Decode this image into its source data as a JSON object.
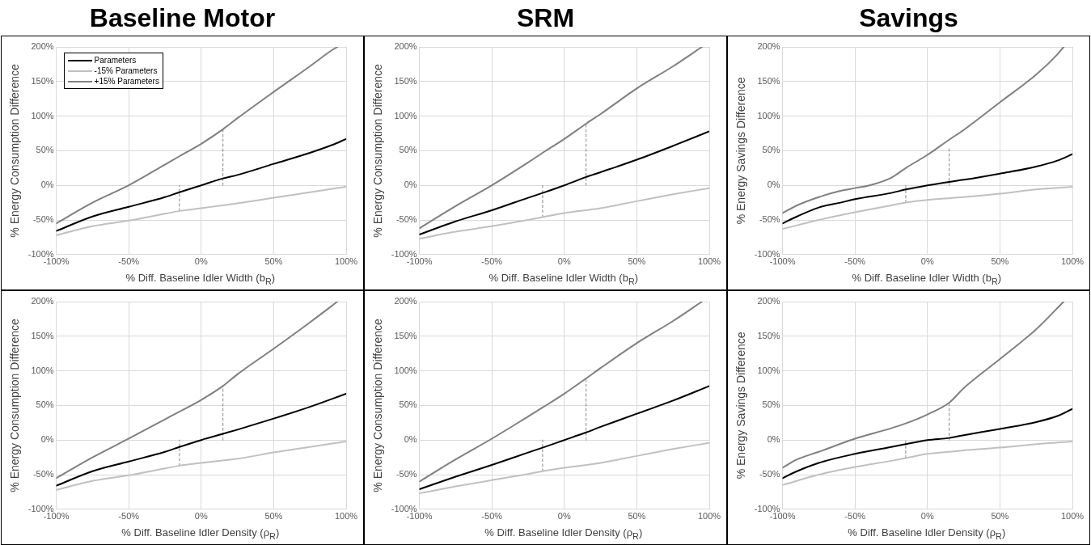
{
  "chart_data": [
    {
      "type": "line",
      "title": "Baseline Motor",
      "xlabel": "% Diff. Baseline Idler Width (b$_{R}$)",
      "ylabel": "% Energy Consumption Difference",
      "xlim": [
        -100,
        100
      ],
      "ylim": [
        -100,
        200
      ],
      "xticks": [
        {
          "value": -100,
          "label": "-100%"
        },
        {
          "value": -50,
          "label": "-50%"
        },
        {
          "value": 0,
          "label": "0%"
        },
        {
          "value": 50,
          "label": "50%"
        },
        {
          "value": 100,
          "label": "100%"
        }
      ],
      "yticks": [
        {
          "value": -100,
          "label": "-100%"
        },
        {
          "value": -50,
          "label": "-50%"
        },
        {
          "value": 0,
          "label": "0%"
        },
        {
          "value": 50,
          "label": "50%"
        },
        {
          "value": 100,
          "label": "100%"
        },
        {
          "value": 150,
          "label": "150%"
        },
        {
          "value": 200,
          "label": "200%"
        }
      ],
      "grid": true,
      "legend": "top left",
      "series": [
        {
          "name": "Parameters",
          "color": "#000000",
          "x": [
            -100,
            -75,
            -50,
            -25,
            -15,
            0,
            15,
            25,
            50,
            75,
            90,
            100
          ],
          "values": [
            -66,
            -45,
            -31,
            -17,
            -10,
            0,
            10,
            15,
            31,
            47,
            58,
            67
          ]
        },
        {
          "name": "-15% Parameters",
          "color": "#c0c0c0",
          "x": [
            -100,
            -75,
            -50,
            -25,
            -15,
            0,
            25,
            50,
            75,
            100
          ],
          "values": [
            -72,
            -59,
            -51,
            -41,
            -37,
            -33,
            -26,
            -18,
            -10,
            -2
          ]
        },
        {
          "name": "+15% Parameters",
          "color": "#808080",
          "x": [
            -100,
            -75,
            -50,
            -25,
            -15,
            0,
            15,
            25,
            50,
            75,
            90,
            94
          ],
          "values": [
            -55,
            -25,
            0,
            30,
            42,
            60,
            81,
            97,
            135,
            172,
            195,
            200
          ]
        },
        {
          "color": "#7f7f7f",
          "line_style": "dashed",
          "x": [
            -15,
            -15
          ],
          "values": [
            -37,
            0
          ]
        },
        {
          "color": "#7f7f7f",
          "line_style": "dashed",
          "x": [
            15,
            15
          ],
          "values": [
            0,
            81
          ]
        }
      ]
    },
    {
      "type": "line",
      "title": "SRM",
      "xlabel": "% Diff. Baseline Idler Width (b$_{R}$)",
      "ylabel": "% Energy Consumption Difference",
      "xlim": [
        -100,
        100
      ],
      "ylim": [
        -100,
        200
      ],
      "xticks": [
        {
          "value": -100,
          "label": "-100%"
        },
        {
          "value": -50,
          "label": "-50%"
        },
        {
          "value": 0,
          "label": "0%"
        },
        {
          "value": 50,
          "label": "50%"
        },
        {
          "value": 100,
          "label": "100%"
        }
      ],
      "yticks": [
        {
          "value": -100,
          "label": "-100%"
        },
        {
          "value": -50,
          "label": "-50%"
        },
        {
          "value": 0,
          "label": "0%"
        },
        {
          "value": 50,
          "label": "50%"
        },
        {
          "value": 100,
          "label": "100%"
        },
        {
          "value": 150,
          "label": "150%"
        },
        {
          "value": 200,
          "label": "200%"
        }
      ],
      "grid": true,
      "series": [
        {
          "color": "#000000",
          "x": [
            -100,
            -75,
            -50,
            -25,
            -15,
            0,
            15,
            25,
            50,
            75,
            100
          ],
          "values": [
            -71,
            -52,
            -36,
            -18,
            -11,
            0,
            12,
            19,
            37,
            57,
            78
          ]
        },
        {
          "color": "#c0c0c0",
          "x": [
            -100,
            -75,
            -50,
            -25,
            -15,
            0,
            25,
            50,
            75,
            100
          ],
          "values": [
            -77,
            -67,
            -59,
            -50,
            -46,
            -40,
            -33,
            -23,
            -13,
            -4
          ]
        },
        {
          "color": "#808080",
          "x": [
            -100,
            -75,
            -50,
            -25,
            -15,
            0,
            15,
            25,
            50,
            75,
            95
          ],
          "values": [
            -62,
            -30,
            0,
            33,
            47,
            67,
            89,
            103,
            140,
            172,
            200
          ]
        },
        {
          "color": "#7f7f7f",
          "line_style": "dashed",
          "x": [
            -15,
            -15
          ],
          "values": [
            -46,
            0
          ]
        },
        {
          "color": "#7f7f7f",
          "line_style": "dashed",
          "x": [
            15,
            15
          ],
          "values": [
            0,
            89
          ]
        }
      ]
    },
    {
      "type": "line",
      "title": "Savings",
      "xlabel": "% Diff. Baseline Idler Width (b$_{R}$)",
      "ylabel": "% Energy Savings Difference",
      "xlim": [
        -100,
        100
      ],
      "ylim": [
        -100,
        200
      ],
      "xticks": [
        {
          "value": -100,
          "label": "-100%"
        },
        {
          "value": -50,
          "label": "-50%"
        },
        {
          "value": 0,
          "label": "0%"
        },
        {
          "value": 50,
          "label": "50%"
        },
        {
          "value": 100,
          "label": "100%"
        }
      ],
      "yticks": [
        {
          "value": -100,
          "label": "-100%"
        },
        {
          "value": -50,
          "label": "-50%"
        },
        {
          "value": 0,
          "label": "0%"
        },
        {
          "value": 50,
          "label": "50%"
        },
        {
          "value": 100,
          "label": "100%"
        },
        {
          "value": 150,
          "label": "150%"
        },
        {
          "value": 200,
          "label": "200%"
        }
      ],
      "grid": true,
      "series": [
        {
          "color": "#000000",
          "x": [
            -100,
            -90,
            -75,
            -60,
            -50,
            -25,
            -15,
            0,
            15,
            25,
            50,
            75,
            90,
            100
          ],
          "values": [
            -55,
            -45,
            -32,
            -25,
            -20,
            -11,
            -6,
            0,
            5,
            8,
            17,
            27,
            36,
            45
          ]
        },
        {
          "color": "#c0c0c0",
          "x": [
            -100,
            -75,
            -50,
            -25,
            -15,
            0,
            25,
            50,
            75,
            100
          ],
          "values": [
            -63,
            -50,
            -39,
            -29,
            -25,
            -21,
            -17,
            -12,
            -6,
            -2
          ]
        },
        {
          "color": "#808080",
          "x": [
            -100,
            -90,
            -75,
            -60,
            -50,
            -40,
            -25,
            -15,
            0,
            15,
            25,
            50,
            75,
            90,
            94
          ],
          "values": [
            -40,
            -29,
            -17,
            -8,
            -4,
            0,
            11,
            25,
            44,
            66,
            80,
            120,
            160,
            190,
            200
          ]
        },
        {
          "color": "#7f7f7f",
          "line_style": "dashed",
          "x": [
            -15,
            -15
          ],
          "values": [
            -25,
            0
          ]
        },
        {
          "color": "#7f7f7f",
          "line_style": "dashed",
          "x": [
            15,
            15
          ],
          "values": [
            0,
            56
          ]
        }
      ]
    },
    {
      "type": "line",
      "xlabel": "% Diff. Baseline Idler Density (ρ$_{R}$)",
      "ylabel": "% Energy Consumption Difference",
      "xlim": [
        -100,
        100
      ],
      "ylim": [
        -100,
        200
      ],
      "xticks": [
        {
          "value": -100,
          "label": "-100%"
        },
        {
          "value": -50,
          "label": "-50%"
        },
        {
          "value": 0,
          "label": "0%"
        },
        {
          "value": 50,
          "label": "50%"
        },
        {
          "value": 100,
          "label": "100%"
        }
      ],
      "yticks": [
        {
          "value": -100,
          "label": "-100%"
        },
        {
          "value": -50,
          "label": "-50%"
        },
        {
          "value": 0,
          "label": "0%"
        },
        {
          "value": 50,
          "label": "50%"
        },
        {
          "value": 100,
          "label": "100%"
        },
        {
          "value": 150,
          "label": "150%"
        },
        {
          "value": 200,
          "label": "200%"
        }
      ],
      "grid": true,
      "series": [
        {
          "color": "#000000",
          "x": [
            -100,
            -75,
            -50,
            -25,
            -15,
            0,
            15,
            25,
            50,
            75,
            100
          ],
          "values": [
            -66,
            -45,
            -31,
            -17,
            -10,
            0,
            9,
            15,
            31,
            48,
            67
          ]
        },
        {
          "color": "#c0c0c0",
          "x": [
            -100,
            -75,
            -50,
            -25,
            -15,
            0,
            25,
            50,
            75,
            100
          ],
          "values": [
            -72,
            -59,
            -51,
            -41,
            -37,
            -33,
            -27,
            -18,
            -10,
            -2
          ]
        },
        {
          "color": "#808080",
          "x": [
            -100,
            -75,
            -50,
            -25,
            -15,
            0,
            15,
            25,
            50,
            75,
            94
          ],
          "values": [
            -55,
            -25,
            2,
            30,
            41,
            58,
            78,
            95,
            132,
            170,
            200
          ]
        },
        {
          "color": "#7f7f7f",
          "line_style": "dashed",
          "x": [
            -15,
            -15
          ],
          "values": [
            -37,
            0
          ]
        },
        {
          "color": "#7f7f7f",
          "line_style": "dashed",
          "x": [
            15,
            15
          ],
          "values": [
            0,
            78
          ]
        }
      ]
    },
    {
      "type": "line",
      "xlabel": "% Diff. Baseline Idler Density (ρ$_{R}$)",
      "ylabel": "% Energy Consumption Difference",
      "xlim": [
        -100,
        100
      ],
      "ylim": [
        -100,
        200
      ],
      "xticks": [
        {
          "value": -100,
          "label": "-100%"
        },
        {
          "value": -50,
          "label": "-50%"
        },
        {
          "value": 0,
          "label": "0%"
        },
        {
          "value": 50,
          "label": "50%"
        },
        {
          "value": 100,
          "label": "100%"
        }
      ],
      "yticks": [
        {
          "value": -100,
          "label": "-100%"
        },
        {
          "value": -50,
          "label": "-50%"
        },
        {
          "value": 0,
          "label": "0%"
        },
        {
          "value": 50,
          "label": "50%"
        },
        {
          "value": 100,
          "label": "100%"
        },
        {
          "value": 150,
          "label": "150%"
        },
        {
          "value": 200,
          "label": "200%"
        }
      ],
      "grid": true,
      "series": [
        {
          "color": "#000000",
          "x": [
            -100,
            -75,
            -50,
            -25,
            -15,
            0,
            15,
            25,
            50,
            75,
            100
          ],
          "values": [
            -71,
            -53,
            -36,
            -18,
            -11,
            0,
            11,
            19,
            38,
            57,
            78
          ]
        },
        {
          "color": "#c0c0c0",
          "x": [
            -100,
            -75,
            -50,
            -25,
            -15,
            0,
            25,
            50,
            75,
            100
          ],
          "values": [
            -77,
            -67,
            -58,
            -49,
            -45,
            -40,
            -33,
            -23,
            -13,
            -4
          ]
        },
        {
          "color": "#808080",
          "x": [
            -100,
            -75,
            -50,
            -25,
            -15,
            0,
            15,
            25,
            50,
            75,
            95
          ],
          "values": [
            -60,
            -28,
            2,
            34,
            47,
            67,
            89,
            104,
            140,
            172,
            200
          ]
        },
        {
          "color": "#7f7f7f",
          "line_style": "dashed",
          "x": [
            -15,
            -15
          ],
          "values": [
            -45,
            0
          ]
        },
        {
          "color": "#7f7f7f",
          "line_style": "dashed",
          "x": [
            15,
            15
          ],
          "values": [
            0,
            89
          ]
        }
      ]
    },
    {
      "type": "line",
      "xlabel": "% Diff. Baseline Idler Density (ρ$_{R}$)",
      "ylabel": "% Energy Savings Difference",
      "xlim": [
        -100,
        100
      ],
      "ylim": [
        -100,
        200
      ],
      "xticks": [
        {
          "value": -100,
          "label": "-100%"
        },
        {
          "value": -50,
          "label": "-50%"
        },
        {
          "value": 0,
          "label": "0%"
        },
        {
          "value": 50,
          "label": "50%"
        },
        {
          "value": 100,
          "label": "100%"
        }
      ],
      "yticks": [
        {
          "value": -100,
          "label": "-100%"
        },
        {
          "value": -50,
          "label": "-50%"
        },
        {
          "value": 0,
          "label": "0%"
        },
        {
          "value": 50,
          "label": "50%"
        },
        {
          "value": 100,
          "label": "100%"
        },
        {
          "value": 150,
          "label": "150%"
        },
        {
          "value": 200,
          "label": "200%"
        }
      ],
      "grid": true,
      "series": [
        {
          "color": "#000000",
          "x": [
            -100,
            -90,
            -75,
            -50,
            -25,
            -15,
            0,
            15,
            25,
            50,
            75,
            90,
            100
          ],
          "values": [
            -55,
            -45,
            -33,
            -20,
            -10,
            -6,
            0,
            3,
            7,
            16,
            26,
            35,
            45
          ]
        },
        {
          "color": "#c0c0c0",
          "x": [
            -100,
            -75,
            -50,
            -25,
            -15,
            0,
            15,
            25,
            50,
            75,
            100
          ],
          "values": [
            -65,
            -50,
            -39,
            -30,
            -26,
            -20,
            -17,
            -15,
            -11,
            -6,
            -2
          ]
        },
        {
          "color": "#808080",
          "x": [
            -100,
            -90,
            -75,
            -50,
            -25,
            -15,
            0,
            15,
            25,
            50,
            75,
            94
          ],
          "values": [
            -40,
            -28,
            -17,
            2,
            17,
            24,
            37,
            54,
            75,
            117,
            160,
            200
          ]
        },
        {
          "color": "#7f7f7f",
          "line_style": "dashed",
          "x": [
            -15,
            -15
          ],
          "values": [
            -26,
            0
          ]
        },
        {
          "color": "#7f7f7f",
          "line_style": "dashed",
          "x": [
            15,
            15
          ],
          "values": [
            0,
            54
          ]
        }
      ]
    }
  ]
}
